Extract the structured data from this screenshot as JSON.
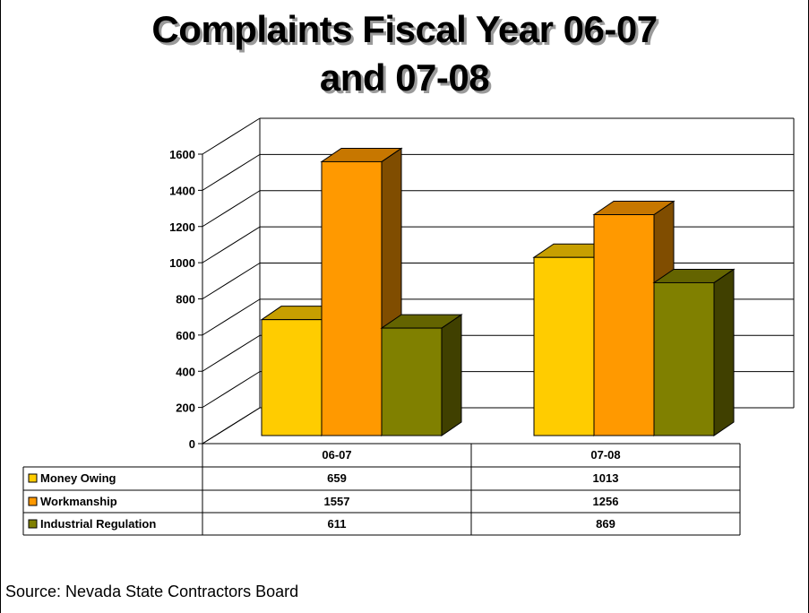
{
  "title_line1": "Complaints Fiscal Year 06-07",
  "title_line2": "and 07-08",
  "source": "Source: Nevada State Contractors Board",
  "colors": {
    "money_owing": "#ffcc00",
    "workmanship": "#ff9900",
    "industrial_regulation": "#808000"
  },
  "chart_data": {
    "type": "bar",
    "categories": [
      "06-07",
      "07-08"
    ],
    "series": [
      {
        "name": "Money Owing",
        "values": [
          659,
          1013
        ]
      },
      {
        "name": "Workmanship",
        "values": [
          1557,
          1256
        ]
      },
      {
        "name": "Industrial Regulation",
        "values": [
          611,
          869
        ]
      }
    ],
    "ylim": [
      0,
      1600
    ],
    "yticks": [
      "0",
      "200",
      "400",
      "600",
      "800",
      "1000",
      "1200",
      "1400",
      "1600"
    ],
    "data_table": true,
    "three_d": true,
    "grid": true
  }
}
